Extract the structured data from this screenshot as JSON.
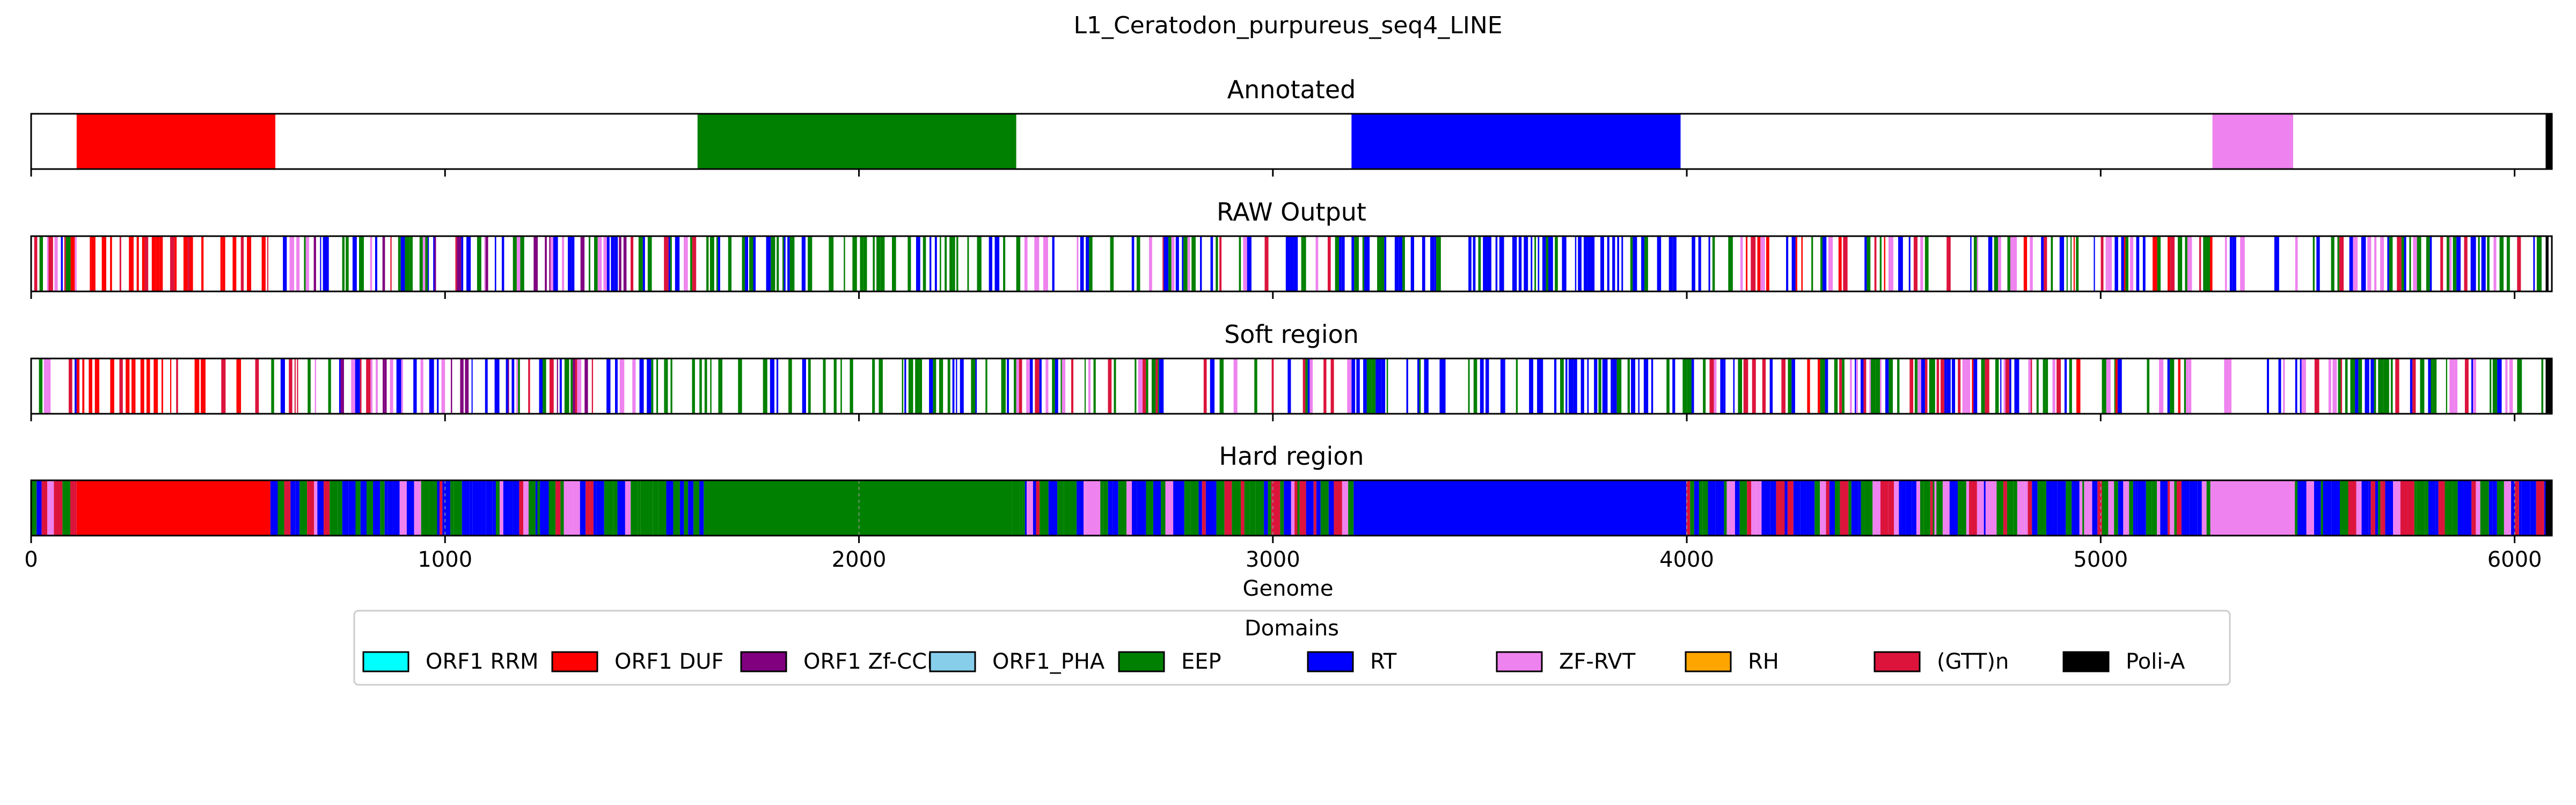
{
  "chart_data": {
    "type": "genome-track",
    "title": "L1_Ceratodon_purpureus_seq4_LINE",
    "xlabel": "Genome",
    "xlim": [
      0,
      6090
    ],
    "xticks": [
      0,
      1000,
      2000,
      3000,
      4000,
      5000,
      6000
    ],
    "xtick_labels": [
      "0",
      "1000",
      "2000",
      "3000",
      "4000",
      "5000",
      "6000"
    ],
    "legend": {
      "title": "Domains",
      "placement": "bottom-center",
      "entries": [
        {
          "name": "ORF1 RRM",
          "color": "#00ffff"
        },
        {
          "name": "ORF1 DUF",
          "color": "#ff0000"
        },
        {
          "name": "ORF1 Zf-CCHC",
          "color": "#800080"
        },
        {
          "name": "ORF1_PHA",
          "color": "#87ceeb"
        },
        {
          "name": "EEP",
          "color": "#008000"
        },
        {
          "name": "RT",
          "color": "#0000ff"
        },
        {
          "name": "ZF-RVT",
          "color": "#ee82ee"
        },
        {
          "name": "RH",
          "color": "#ffa500"
        },
        {
          "name": "(GTT)n",
          "color": "#dc143c"
        },
        {
          "name": "Poli-A",
          "color": "#000000"
        }
      ]
    },
    "tracks": [
      {
        "title": "Annotated",
        "mode": "blocks",
        "segments": [
          {
            "domain": "ORF1 DUF",
            "start": 110,
            "end": 590
          },
          {
            "domain": "EEP",
            "start": 1610,
            "end": 2380
          },
          {
            "domain": "RT",
            "start": 3190,
            "end": 3985
          },
          {
            "domain": "ZF-RVT",
            "start": 5270,
            "end": 5465
          },
          {
            "domain": "Poli-A",
            "start": 6075,
            "end": 6090
          }
        ]
      },
      {
        "title": "RAW Output",
        "mode": "stripes",
        "base": "#ffffff",
        "regions": [
          {
            "start": 0,
            "end": 110,
            "mix": [
              "EEP",
              "RT",
              "(GTT)n",
              "ZF-RVT",
              "ORF1 DUF"
            ],
            "density": 0.7
          },
          {
            "start": 110,
            "end": 580,
            "mix": [
              "ORF1 DUF",
              "ORF1 DUF",
              "ORF1 DUF",
              "(GTT)n"
            ],
            "density": 0.55
          },
          {
            "start": 580,
            "end": 1610,
            "mix": [
              "RT",
              "EEP",
              "ZF-RVT",
              "(GTT)n",
              "RT",
              "EEP",
              "ORF1 Zf-CCHC"
            ],
            "density": 0.6
          },
          {
            "start": 1610,
            "end": 2380,
            "mix": [
              "EEP",
              "EEP",
              "EEP",
              "RT"
            ],
            "density": 0.45
          },
          {
            "start": 2380,
            "end": 3190,
            "mix": [
              "RT",
              "EEP",
              "ZF-RVT",
              "(GTT)n",
              "RT",
              "EEP"
            ],
            "density": 0.6
          },
          {
            "start": 3190,
            "end": 3990,
            "mix": [
              "RT",
              "RT",
              "RT",
              "EEP"
            ],
            "density": 0.55
          },
          {
            "start": 3990,
            "end": 5270,
            "mix": [
              "RT",
              "EEP",
              "ZF-RVT",
              "(GTT)n",
              "RT",
              "EEP",
              "ORF1 DUF"
            ],
            "density": 0.6
          },
          {
            "start": 5270,
            "end": 5470,
            "mix": [
              "ZF-RVT",
              "ZF-RVT",
              "RT"
            ],
            "density": 0.35
          },
          {
            "start": 5470,
            "end": 6075,
            "mix": [
              "RT",
              "EEP",
              "ZF-RVT",
              "(GTT)n",
              "RT",
              "EEP"
            ],
            "density": 0.7
          },
          {
            "start": 6075,
            "end": 6090,
            "mix": [
              "Poli-A"
            ],
            "density": 1.0
          }
        ]
      },
      {
        "title": "Soft region",
        "mode": "stripes",
        "base": "#ffffff",
        "regions": [
          {
            "start": 0,
            "end": 110,
            "mix": [
              "EEP",
              "RT",
              "(GTT)n",
              "ZF-RVT",
              "ORF1 DUF"
            ],
            "density": 0.7
          },
          {
            "start": 110,
            "end": 580,
            "mix": [
              "ORF1 DUF",
              "ORF1 DUF",
              "ORF1 DUF",
              "(GTT)n"
            ],
            "density": 0.55
          },
          {
            "start": 580,
            "end": 1610,
            "mix": [
              "RT",
              "EEP",
              "ZF-RVT",
              "(GTT)n",
              "RT",
              "EEP",
              "ORF1 Zf-CCHC"
            ],
            "density": 0.6
          },
          {
            "start": 1610,
            "end": 2380,
            "mix": [
              "EEP",
              "EEP",
              "EEP",
              "RT"
            ],
            "density": 0.45
          },
          {
            "start": 2380,
            "end": 3190,
            "mix": [
              "RT",
              "EEP",
              "ZF-RVT",
              "(GTT)n",
              "RT",
              "EEP"
            ],
            "density": 0.6
          },
          {
            "start": 3190,
            "end": 3990,
            "mix": [
              "RT",
              "RT",
              "RT",
              "EEP"
            ],
            "density": 0.55
          },
          {
            "start": 3990,
            "end": 5270,
            "mix": [
              "RT",
              "EEP",
              "ZF-RVT",
              "(GTT)n",
              "RT",
              "EEP",
              "ORF1 DUF"
            ],
            "density": 0.6
          },
          {
            "start": 5270,
            "end": 5470,
            "mix": [
              "ZF-RVT",
              "ZF-RVT",
              "RT"
            ],
            "density": 0.35
          },
          {
            "start": 5470,
            "end": 6075,
            "mix": [
              "RT",
              "EEP",
              "ZF-RVT",
              "(GTT)n",
              "RT",
              "EEP"
            ],
            "density": 0.7
          },
          {
            "start": 6075,
            "end": 6090,
            "mix": [
              "Poli-A"
            ],
            "density": 1.0
          }
        ]
      },
      {
        "title": "Hard region",
        "mode": "stripes-solid",
        "regions": [
          {
            "start": 0,
            "end": 110,
            "mix": [
              "ZF-RVT",
              "RT",
              "EEP",
              "(GTT)n"
            ],
            "density": 1.0
          },
          {
            "start": 110,
            "end": 578,
            "solid": "ORF1 DUF"
          },
          {
            "start": 578,
            "end": 1625,
            "mix": [
              "RT",
              "EEP",
              "RT",
              "ZF-RVT",
              "(GTT)n",
              "EEP"
            ],
            "density": 1.0
          },
          {
            "start": 1625,
            "end": 2370,
            "solid": "EEP"
          },
          {
            "start": 2370,
            "end": 3195,
            "mix": [
              "RT",
              "EEP",
              "RT",
              "ZF-RVT",
              "(GTT)n",
              "EEP"
            ],
            "density": 1.0
          },
          {
            "start": 3195,
            "end": 3985,
            "solid": "RT"
          },
          {
            "start": 3985,
            "end": 5265,
            "mix": [
              "EEP",
              "RT",
              "EEP",
              "ZF-RVT",
              "(GTT)n",
              "RT"
            ],
            "density": 1.0
          },
          {
            "start": 5265,
            "end": 5460,
            "solid": "ZF-RVT"
          },
          {
            "start": 5460,
            "end": 6075,
            "mix": [
              "RT",
              "EEP",
              "RT",
              "ZF-RVT",
              "(GTT)n",
              "EEP"
            ],
            "density": 1.0
          },
          {
            "start": 6075,
            "end": 6090,
            "solid": "Poli-A"
          }
        ]
      }
    ]
  }
}
